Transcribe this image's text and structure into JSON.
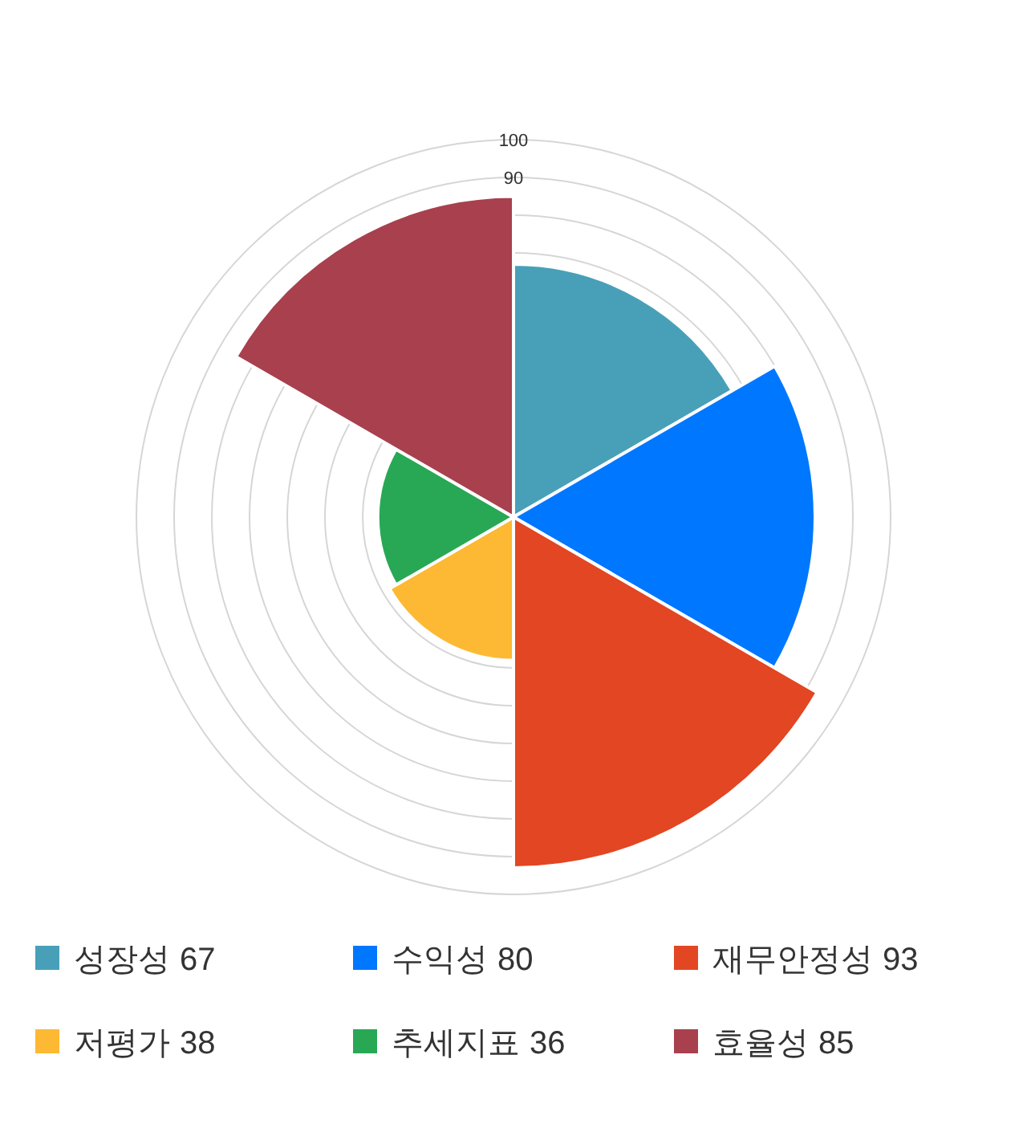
{
  "chart_data": {
    "type": "other",
    "categories": [
      "성장성",
      "수익성",
      "재무안정성",
      "저평가",
      "추세지표",
      "효율성"
    ],
    "values": [
      67,
      80,
      93,
      38,
      36,
      85
    ],
    "value_labels": [
      "67",
      "80",
      "93",
      "38",
      "36",
      "85"
    ],
    "colors": [
      "#48a0b8",
      "#0077ff",
      "#e24622",
      "#fdb933",
      "#28a855",
      "#a8404e"
    ],
    "annotations": [
      "100",
      "90"
    ]
  }
}
